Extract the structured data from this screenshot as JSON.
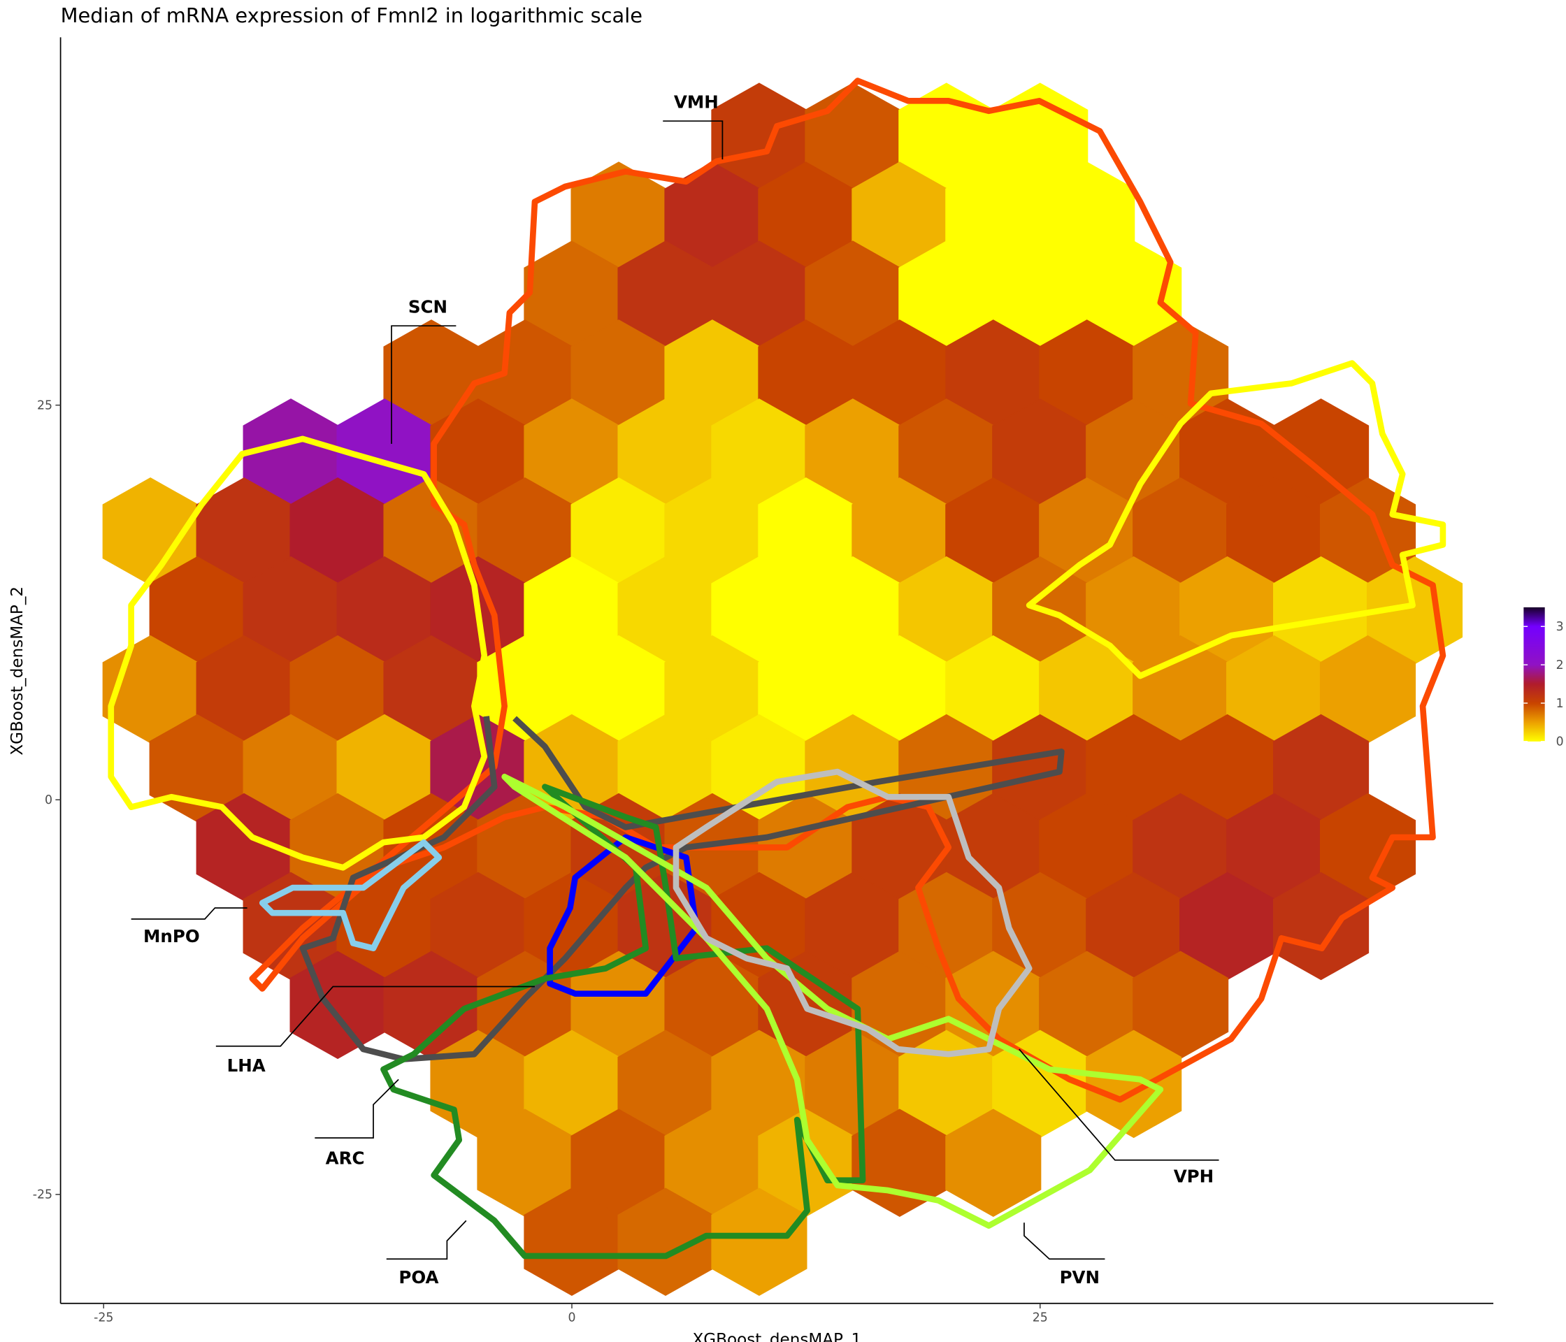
{
  "chart_data": {
    "type": "hexbin",
    "title": "Median of mRNA expression of Fmnl2 in logarithmic scale",
    "x_label": "XGBoost_densMAP_1",
    "y_label": "XGBoost_densMAP_2",
    "xlim": [
      -27.3,
      49.2
    ],
    "ylim": [
      -31.9,
      48.3
    ],
    "xticks": [
      -25,
      0,
      25
    ],
    "yticks": [
      -25,
      0,
      25
    ],
    "grid": false,
    "colorbar_lim": [
      0,
      3.5
    ],
    "colorbar_ticks": [
      0,
      1,
      2,
      3
    ],
    "colorscale": [
      {
        "value": 0,
        "color": "#ffff00"
      },
      {
        "value": 0.5,
        "color": "#eca000"
      },
      {
        "value": 1,
        "color": "#c84400"
      },
      {
        "value": 1.5,
        "color": "#b01c2c"
      },
      {
        "value": 2,
        "color": "#9012c4"
      },
      {
        "value": 3,
        "color": "#7400ff"
      },
      {
        "value": 3.5,
        "color": "#180028"
      }
    ],
    "annotations": [
      "VMH",
      "SCN",
      "MnPO",
      "LHA",
      "ARC",
      "POA",
      "PVN",
      "VPH"
    ],
    "x": [
      10,
      15,
      20,
      25,
      2.5,
      7.5,
      12.5,
      17.5,
      22.5,
      27.5,
      0,
      5,
      10,
      15,
      20,
      25,
      30,
      -7.5,
      -2.5,
      2.5,
      7.5,
      12.5,
      17.5,
      22.5,
      27.5,
      32.5,
      -15,
      -10,
      -5,
      0,
      5,
      10,
      15,
      20,
      25,
      30,
      35,
      40,
      -22.5,
      -17.5,
      -12.5,
      -7.5,
      -2.5,
      2.5,
      7.5,
      12.5,
      17.5,
      22.5,
      27.5,
      32.5,
      37.5,
      42.5,
      -20,
      -15,
      -10,
      -5,
      0,
      5,
      10,
      15,
      20,
      25,
      30,
      35,
      40,
      45,
      -22.5,
      -17.5,
      -12.5,
      -7.5,
      -2.5,
      2.5,
      7.5,
      12.5,
      17.5,
      22.5,
      27.5,
      32.5,
      37.5,
      42.5,
      -20,
      -15,
      -10,
      -5,
      0,
      5,
      10,
      15,
      20,
      25,
      30,
      35,
      40,
      -17.5,
      -12.5,
      -7.5,
      -2.5,
      2.5,
      7.5,
      12.5,
      17.5,
      22.5,
      27.5,
      32.5,
      37.5,
      42.5,
      -15,
      -10,
      -5,
      0,
      5,
      10,
      15,
      20,
      25,
      30,
      35,
      40,
      -12.5,
      -7.5,
      -2.5,
      2.5,
      7.5,
      12.5,
      17.5,
      22.5,
      27.5,
      32.5,
      -5,
      0,
      5,
      10,
      15,
      20,
      25,
      30,
      -2.5,
      2.5,
      7.5,
      12.5,
      17.5,
      22.5,
      0,
      5,
      10
    ],
    "y": [
      42,
      42,
      42,
      42,
      37,
      37,
      37,
      37,
      37,
      37,
      32,
      32,
      32,
      32,
      32,
      32,
      32,
      27,
      27,
      27,
      27,
      27,
      27,
      27,
      27,
      27,
      22,
      22,
      22,
      22,
      22,
      22,
      22,
      22,
      22,
      22,
      22,
      22,
      17,
      17,
      17,
      17,
      17,
      17,
      17,
      17,
      17,
      17,
      17,
      17,
      17,
      17,
      12,
      12,
      12,
      12,
      12,
      12,
      12,
      12,
      12,
      12,
      12,
      12,
      12,
      12,
      7,
      7,
      7,
      7,
      7,
      7,
      7,
      7,
      7,
      7,
      7,
      7,
      7,
      7,
      2,
      2,
      2,
      2,
      2,
      2,
      2,
      2,
      2,
      2,
      2,
      2,
      2,
      -3,
      -3,
      -3,
      -3,
      -3,
      -3,
      -3,
      -3,
      -3,
      -3,
      -3,
      -3,
      -3,
      -8,
      -8,
      -8,
      -8,
      -8,
      -8,
      -8,
      -8,
      -8,
      -8,
      -8,
      -8,
      -13,
      -13,
      -13,
      -13,
      -13,
      -13,
      -13,
      -13,
      -13,
      -13,
      -18,
      -18,
      -18,
      -18,
      -18,
      -18,
      -18,
      -18,
      -23,
      -23,
      -23,
      -23,
      -23,
      -23,
      -28,
      -28,
      -28
    ],
    "values": [
      1.1,
      0.9,
      0,
      0,
      0.7,
      1.3,
      1.0,
      0.4,
      0,
      0,
      0.8,
      1.2,
      1.2,
      0.9,
      0,
      0,
      0,
      0.9,
      0.9,
      0.8,
      0.3,
      1.0,
      1.0,
      1.1,
      1.0,
      0.8,
      1.9,
      2.0,
      1.0,
      0.6,
      0.3,
      0.2,
      0.5,
      0.9,
      1.1,
      0.8,
      1.0,
      1.0,
      0.4,
      1.2,
      1.5,
      0.8,
      0.9,
      0.1,
      0.2,
      0,
      0.5,
      1.0,
      0.7,
      0.9,
      1.0,
      0.9,
      1.0,
      1.2,
      1.3,
      1.4,
      0,
      0.2,
      0,
      0,
      0.3,
      0.8,
      0.6,
      0.5,
      0.2,
      0.3,
      0.6,
      1.1,
      0.9,
      1.2,
      0,
      0,
      0.2,
      0,
      0,
      0.1,
      0.3,
      0.6,
      0.4,
      0.5,
      0.9,
      0.7,
      0.4,
      1.6,
      0.4,
      0.2,
      0.1,
      0.4,
      0.8,
      1.1,
      1.0,
      1.0,
      1.2,
      1.4,
      0.8,
      1.0,
      0.9,
      1.1,
      0.9,
      0.7,
      1.1,
      1.1,
      1.0,
      1.2,
      1.3,
      1.0,
      1.2,
      1.0,
      1.1,
      1.0,
      1.2,
      1.0,
      1.1,
      0.8,
      0.9,
      1.1,
      1.4,
      1.2,
      1.4,
      1.3,
      0.9,
      0.6,
      0.9,
      1.1,
      0.8,
      0.6,
      0.8,
      0.9,
      0.6,
      0.4,
      0.8,
      0.6,
      0.7,
      0.3,
      0.2,
      0.5,
      0.6,
      0.9,
      0.6,
      0.4,
      0.9,
      0.6,
      0.9,
      0.8,
      0.5
    ]
  }
}
